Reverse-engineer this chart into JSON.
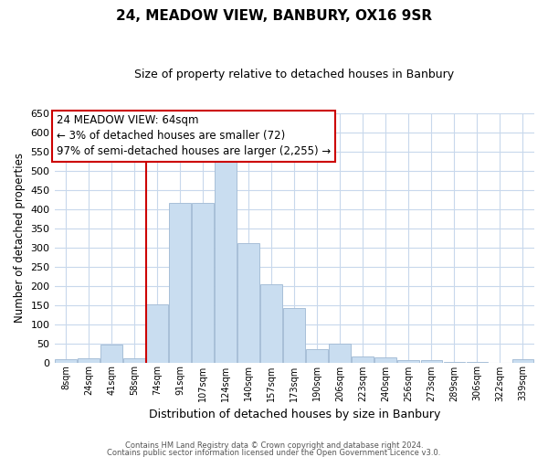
{
  "title": "24, MEADOW VIEW, BANBURY, OX16 9SR",
  "subtitle": "Size of property relative to detached houses in Banbury",
  "xlabel": "Distribution of detached houses by size in Banbury",
  "ylabel": "Number of detached properties",
  "footer_lines": [
    "Contains HM Land Registry data © Crown copyright and database right 2024.",
    "Contains public sector information licensed under the Open Government Licence v3.0."
  ],
  "bin_labels": [
    "8sqm",
    "24sqm",
    "41sqm",
    "58sqm",
    "74sqm",
    "91sqm",
    "107sqm",
    "124sqm",
    "140sqm",
    "157sqm",
    "173sqm",
    "190sqm",
    "206sqm",
    "223sqm",
    "240sqm",
    "256sqm",
    "273sqm",
    "289sqm",
    "306sqm",
    "322sqm",
    "339sqm"
  ],
  "bar_values": [
    8,
    10,
    46,
    10,
    152,
    417,
    417,
    530,
    312,
    205,
    143,
    35,
    49,
    16,
    14,
    5,
    5,
    2,
    2,
    0,
    8
  ],
  "bar_color": "#c9ddf0",
  "bar_edge_color": "#a8bfd8",
  "ylim": [
    0,
    650
  ],
  "yticks": [
    0,
    50,
    100,
    150,
    200,
    250,
    300,
    350,
    400,
    450,
    500,
    550,
    600,
    650
  ],
  "vline_x_index": 3.5,
  "vline_color": "#cc0000",
  "annotation_box_text": "24 MEADOW VIEW: 64sqm\n← 3% of detached houses are smaller (72)\n97% of semi-detached houses are larger (2,255) →",
  "annotation_fontsize": 8.5,
  "background_color": "#ffffff",
  "grid_color": "#c8d8ec"
}
